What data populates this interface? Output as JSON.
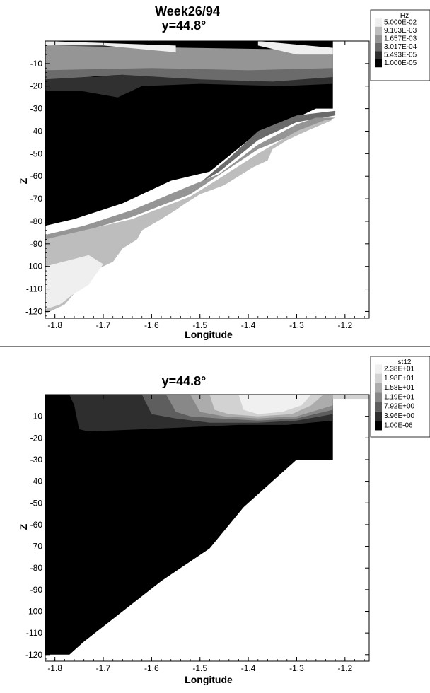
{
  "chart_data": [
    {
      "type": "contour",
      "title": "Week26/94",
      "subtitle": "y=44.8°",
      "xlabel": "Longitude",
      "ylabel": "Z",
      "xlim": [
        -1.82,
        -1.15
      ],
      "ylim": [
        -123,
        0
      ],
      "xticks": [
        "-1.8",
        "-1.7",
        "-1.6",
        "-1.5",
        "-1.4",
        "-1.3",
        "-1.2"
      ],
      "yticks": [
        "-10",
        "-20",
        "-30",
        "-40",
        "-50",
        "-60",
        "-70",
        "-80",
        "-90",
        "-100",
        "-110",
        "-120"
      ],
      "legend": {
        "title": "Hz",
        "position": "top-right",
        "levels": [
          "5.000E-02",
          "9.103E-03",
          "1.657E-03",
          "3.017E-04",
          "5.493E-05",
          "1.000E-05"
        ],
        "colors": [
          "#efefef",
          "#bdbdbd",
          "#959595",
          "#6b6b6b",
          "#303030",
          "#000000"
        ]
      },
      "regions": [
        {
          "level": "1.000E-05",
          "color": "#000000",
          "points": [
            [
              -1.82,
              0
            ],
            [
              -1.225,
              0
            ],
            [
              -1.225,
              -30
            ],
            [
              -1.26,
              -30
            ],
            [
              -1.32,
              -36
            ],
            [
              -1.4,
              -44
            ],
            [
              -1.48,
              -58
            ],
            [
              -1.56,
              -62
            ],
            [
              -1.66,
              -72
            ],
            [
              -1.76,
              -79
            ],
            [
              -1.82,
              -82
            ]
          ]
        },
        {
          "level": "5.493E-05",
          "color": "#303030",
          "points": [
            [
              -1.82,
              -14
            ],
            [
              -1.72,
              -16
            ],
            [
              -1.6,
              -14
            ],
            [
              -1.45,
              -15
            ],
            [
              -1.32,
              -14
            ],
            [
              -1.225,
              -14
            ],
            [
              -1.225,
              -19
            ],
            [
              -1.33,
              -20
            ],
            [
              -1.5,
              -19
            ],
            [
              -1.62,
              -20
            ],
            [
              -1.67,
              -25
            ],
            [
              -1.75,
              -22
            ],
            [
              -1.82,
              -22
            ]
          ]
        },
        {
          "level": "3.017E-04",
          "color": "#6b6b6b",
          "points": [
            [
              -1.82,
              -3
            ],
            [
              -1.225,
              -6
            ],
            [
              -1.225,
              -16
            ],
            [
              -1.35,
              -18
            ],
            [
              -1.5,
              -17
            ],
            [
              -1.66,
              -15
            ],
            [
              -1.82,
              -17
            ]
          ]
        },
        {
          "level": "3.017E-04",
          "color": "#6b6b6b",
          "points": [
            [
              -1.5,
              -63
            ],
            [
              -1.44,
              -52
            ],
            [
              -1.38,
              -40
            ],
            [
              -1.3,
              -33
            ],
            [
              -1.26,
              -32
            ],
            [
              -1.22,
              -31
            ],
            [
              -1.22,
              -33
            ],
            [
              -1.3,
              -36
            ],
            [
              -1.38,
              -44
            ],
            [
              -1.46,
              -58
            ]
          ]
        },
        {
          "level": "1.657E-03",
          "color": "#959595",
          "points": [
            [
              -1.82,
              -2
            ],
            [
              -1.225,
              -4
            ],
            [
              -1.225,
              -12
            ],
            [
              -1.4,
              -13
            ],
            [
              -1.6,
              -12
            ],
            [
              -1.82,
              -13
            ]
          ]
        },
        {
          "level": "1.657E-03",
          "color": "#959595",
          "points": [
            [
              -1.82,
              -86
            ],
            [
              -1.74,
              -82
            ],
            [
              -1.64,
              -75
            ],
            [
              -1.54,
              -66
            ],
            [
              -1.46,
              -59
            ],
            [
              -1.38,
              -46
            ],
            [
              -1.3,
              -37
            ],
            [
              -1.26,
              -34
            ],
            [
              -1.22,
              -34
            ],
            [
              -1.38,
              -48
            ],
            [
              -1.52,
              -68
            ],
            [
              -1.64,
              -78
            ],
            [
              -1.75,
              -85
            ],
            [
              -1.82,
              -90
            ]
          ]
        },
        {
          "level": "9.103E-03",
          "color": "#bdbdbd",
          "points": [
            [
              -1.82,
              -88
            ],
            [
              -1.76,
              -85
            ],
            [
              -1.64,
              -79
            ],
            [
              -1.52,
              -69
            ],
            [
              -1.46,
              -61
            ],
            [
              -1.38,
              -50
            ],
            [
              -1.3,
              -40
            ],
            [
              -1.24,
              -35
            ],
            [
              -1.225,
              -35
            ],
            [
              -1.28,
              -40
            ],
            [
              -1.32,
              -44
            ],
            [
              -1.35,
              -48
            ],
            [
              -1.36,
              -53
            ],
            [
              -1.39,
              -56
            ],
            [
              -1.42,
              -60
            ],
            [
              -1.45,
              -64
            ],
            [
              -1.5,
              -68
            ],
            [
              -1.53,
              -72
            ],
            [
              -1.55,
              -75
            ],
            [
              -1.58,
              -79
            ],
            [
              -1.62,
              -84
            ],
            [
              -1.63,
              -88
            ],
            [
              -1.66,
              -92
            ],
            [
              -1.68,
              -98
            ],
            [
              -1.72,
              -102
            ],
            [
              -1.73,
              -108
            ],
            [
              -1.76,
              -112
            ],
            [
              -1.78,
              -117
            ],
            [
              -1.82,
              -121
            ]
          ]
        },
        {
          "level": "5.000E-02",
          "color": "#efefef",
          "points": [
            [
              -1.82,
              -2
            ],
            [
              -1.7,
              -2
            ],
            [
              -1.6,
              -4
            ],
            [
              -1.55,
              -5
            ],
            [
              -1.55,
              -2
            ],
            [
              -1.82,
              0
            ]
          ]
        },
        {
          "level": "5.000E-02",
          "color": "#efefef",
          "points": [
            [
              -1.38,
              -2
            ],
            [
              -1.3,
              -6
            ],
            [
              -1.225,
              -6
            ],
            [
              -1.225,
              -3
            ],
            [
              -1.38,
              0
            ]
          ]
        },
        {
          "level": "5.000E-02",
          "color": "#efefef",
          "points": [
            [
              -1.82,
              -100
            ],
            [
              -1.73,
              -95
            ],
            [
              -1.7,
              -99
            ],
            [
              -1.73,
              -108
            ],
            [
              -1.76,
              -112
            ],
            [
              -1.79,
              -117
            ],
            [
              -1.82,
              -119
            ]
          ]
        }
      ]
    },
    {
      "type": "contour",
      "title": "y=44.8°",
      "xlabel": "Longitude",
      "ylabel": "Z",
      "xlim": [
        -1.82,
        -1.15
      ],
      "ylim": [
        -123,
        0
      ],
      "xticks": [
        "-1.8",
        "-1.7",
        "-1.6",
        "-1.5",
        "-1.4",
        "-1.3",
        "-1.2"
      ],
      "yticks": [
        "-10",
        "-20",
        "-30",
        "-40",
        "-50",
        "-60",
        "-70",
        "-80",
        "-90",
        "-100",
        "-110",
        "-120"
      ],
      "legend": {
        "title": "st12",
        "position": "top-right",
        "levels": [
          "2.38E+01",
          "1.98E+01",
          "1.58E+01",
          "1.19E+01",
          "7.92E+00",
          "3.96E+00",
          "1.00E-06"
        ],
        "colors": [
          "#f0f0f0",
          "#d2d2d2",
          "#acacac",
          "#888888",
          "#5e5e5e",
          "#2e2e2e",
          "#000000"
        ]
      },
      "regions": [
        {
          "level": "1.00E-06",
          "color": "#000000",
          "points": [
            [
              -1.82,
              0
            ],
            [
              -1.225,
              0
            ],
            [
              -1.225,
              -30
            ],
            [
              -1.24,
              -30
            ],
            [
              -1.3,
              -30
            ],
            [
              -1.36,
              -42
            ],
            [
              -1.41,
              -52
            ],
            [
              -1.48,
              -71
            ],
            [
              -1.58,
              -86
            ],
            [
              -1.66,
              -100
            ],
            [
              -1.74,
              -114
            ],
            [
              -1.77,
              -120
            ],
            [
              -1.82,
              -120
            ]
          ]
        },
        {
          "level": "3.96E+00",
          "color": "#2e2e2e",
          "points": [
            [
              -1.77,
              0
            ],
            [
              -1.225,
              0
            ],
            [
              -1.225,
              -12
            ],
            [
              -1.32,
              -14
            ],
            [
              -1.42,
              -14
            ],
            [
              -1.52,
              -15
            ],
            [
              -1.62,
              -16
            ],
            [
              -1.73,
              -17
            ],
            [
              -1.75,
              -16
            ],
            [
              -1.76,
              -5
            ]
          ]
        },
        {
          "level": "7.92E+00",
          "color": "#5e5e5e",
          "points": [
            [
              -1.62,
              0
            ],
            [
              -1.225,
              0
            ],
            [
              -1.225,
              -9
            ],
            [
              -1.3,
              -12
            ],
            [
              -1.38,
              -13
            ],
            [
              -1.48,
              -13
            ],
            [
              -1.55,
              -11
            ],
            [
              -1.6,
              -9
            ]
          ]
        },
        {
          "level": "1.19E+01",
          "color": "#888888",
          "points": [
            [
              -1.57,
              0
            ],
            [
              -1.225,
              0
            ],
            [
              -1.225,
              -7
            ],
            [
              -1.3,
              -11
            ],
            [
              -1.38,
              -12
            ],
            [
              -1.46,
              -11
            ],
            [
              -1.52,
              -10
            ],
            [
              -1.55,
              -8
            ]
          ]
        },
        {
          "level": "1.58E+01",
          "color": "#acacac",
          "points": [
            [
              -1.52,
              0
            ],
            [
              -1.225,
              0
            ],
            [
              -1.225,
              -5
            ],
            [
              -1.3,
              -10
            ],
            [
              -1.38,
              -11
            ],
            [
              -1.45,
              -10
            ],
            [
              -1.5,
              -8
            ]
          ]
        },
        {
          "level": "1.98E+01",
          "color": "#d2d2d2",
          "points": [
            [
              -1.48,
              0
            ],
            [
              -1.245,
              0
            ],
            [
              -1.27,
              -5
            ],
            [
              -1.31,
              -9
            ],
            [
              -1.38,
              -10
            ],
            [
              -1.44,
              -9
            ],
            [
              -1.47,
              -7
            ]
          ]
        },
        {
          "level": "2.38E+01",
          "color": "#f0f0f0",
          "points": [
            [
              -1.42,
              0
            ],
            [
              -1.27,
              0
            ],
            [
              -1.29,
              -5
            ],
            [
              -1.33,
              -8
            ],
            [
              -1.38,
              -9
            ],
            [
              -1.41,
              -7
            ]
          ]
        },
        {
          "level": "1.98E+01",
          "color": "#d2d2d2",
          "points": [
            [
              -1.225,
              0
            ],
            [
              -1.15,
              0
            ],
            [
              -1.15,
              -2
            ],
            [
              -1.225,
              -2
            ]
          ]
        }
      ]
    }
  ]
}
